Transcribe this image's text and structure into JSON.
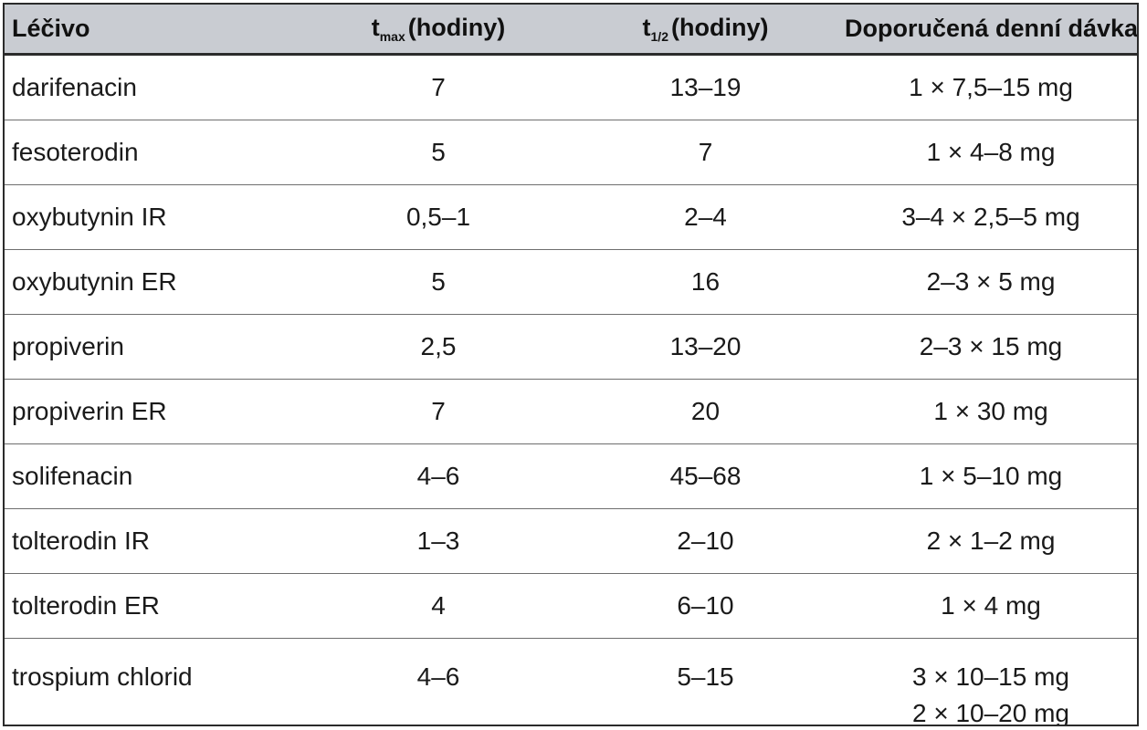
{
  "table": {
    "header": {
      "drug": "Léčivo",
      "tmax_symbol": "t",
      "tmax_sub": "max",
      "tmax_unit": "(hodiny)",
      "thalf_symbol": "t",
      "thalf_sub": "1/2",
      "thalf_unit": "(hodiny)",
      "dose": "Doporučená denní dávka"
    },
    "rows": [
      {
        "drug": "darifenacin",
        "tmax": "7",
        "thalf": "13–19",
        "dose": "1 × 7,5–15 mg"
      },
      {
        "drug": "fesoterodin",
        "tmax": "5",
        "thalf": "7",
        "dose": "1 × 4–8 mg"
      },
      {
        "drug": "oxybutynin IR",
        "tmax": "0,5–1",
        "thalf": "2–4",
        "dose": "3–4 × 2,5–5 mg"
      },
      {
        "drug": "oxybutynin ER",
        "tmax": "5",
        "thalf": "16",
        "dose": "2–3 × 5 mg"
      },
      {
        "drug": "propiverin",
        "tmax": "2,5",
        "thalf": "13–20",
        "dose": "2–3 × 15 mg"
      },
      {
        "drug": "propiverin ER",
        "tmax": "7",
        "thalf": "20",
        "dose": "1 × 30 mg"
      },
      {
        "drug": "solifenacin",
        "tmax": "4–6",
        "thalf": "45–68",
        "dose": "1 × 5–10 mg"
      },
      {
        "drug": "tolterodin IR",
        "tmax": "1–3",
        "thalf": "2–10",
        "dose": "2 × 1–2 mg"
      },
      {
        "drug": "tolterodin ER",
        "tmax": "4",
        "thalf": "6–10",
        "dose": "1 × 4 mg"
      },
      {
        "drug": "trospium chlorid",
        "tmax": "4–6",
        "thalf": "5–15",
        "dose": "3 × 10–15 mg",
        "dose2": "2 × 10–20 mg"
      }
    ]
  }
}
